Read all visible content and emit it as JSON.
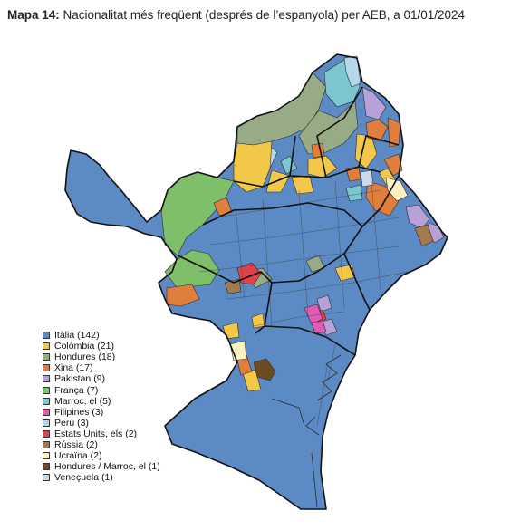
{
  "title": {
    "prefix": "Mapa 14:",
    "text": "Nacionalitat més freqüent (després de l’espanyola) per AEB, a 01/01/2024"
  },
  "colors": {
    "italia": "#5b8ac4",
    "colombia": "#f2c84b",
    "hondures": "#96ab86",
    "xina": "#e07e3e",
    "pakistan": "#b7a2d8",
    "franca": "#7fbf6a",
    "marroc": "#7cc6cf",
    "filipines": "#e35bb3",
    "peru": "#b6d6ea",
    "estats_units": "#e0424b",
    "russia": "#a27a50",
    "ucraina": "#fbf0bf",
    "hondures_marroc": "#6e4a22",
    "veneçuela": "#cdd8ec",
    "outline": "#111111"
  },
  "legend": [
    {
      "label": "Itàlia (142)",
      "color": "#5b8ac4"
    },
    {
      "label": "Colòmbia (21)",
      "color": "#f2c84b"
    },
    {
      "label": "Hondures (18)",
      "color": "#96ab86"
    },
    {
      "label": "Xina (17)",
      "color": "#e07e3e"
    },
    {
      "label": "Pakistan (9)",
      "color": "#b7a2d8"
    },
    {
      "label": "França (7)",
      "color": "#7fbf6a"
    },
    {
      "label": "Marroc, el (5)",
      "color": "#7cc6cf"
    },
    {
      "label": "Filipines (3)",
      "color": "#e35bb3"
    },
    {
      "label": "Perú (3)",
      "color": "#b6d6ea"
    },
    {
      "label": "Estats Units, els (2)",
      "color": "#e0424b"
    },
    {
      "label": "Rússia (2)",
      "color": "#a27a50"
    },
    {
      "label": "Ucraïna (2)",
      "color": "#fbf0bf"
    },
    {
      "label": "Hondures / Marroc, el (1)",
      "color": "#6e4a22"
    },
    {
      "label": "Veneçuela (1)",
      "color": "#cdd8ec"
    }
  ]
}
